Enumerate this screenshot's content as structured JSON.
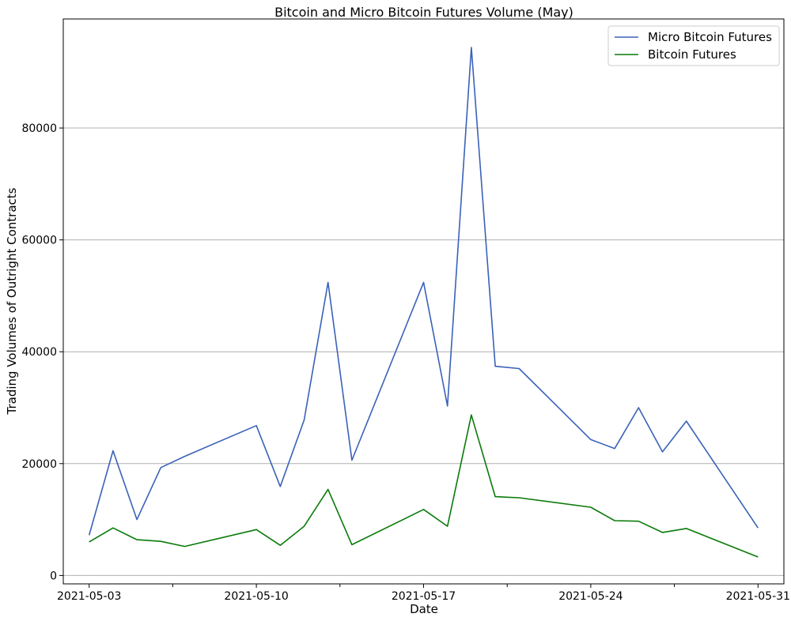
{
  "chart_data": {
    "type": "line",
    "title": "Bitcoin and Micro Bitcoin Futures Volume (May)",
    "xlabel": "Date",
    "ylabel": "Trading Volumes of Outright Contracts",
    "x": [
      "2021-05-03",
      "2021-05-04",
      "2021-05-05",
      "2021-05-06",
      "2021-05-07",
      "2021-05-10",
      "2021-05-11",
      "2021-05-12",
      "2021-05-13",
      "2021-05-14",
      "2021-05-17",
      "2021-05-18",
      "2021-05-19",
      "2021-05-20",
      "2021-05-21",
      "2021-05-24",
      "2021-05-25",
      "2021-05-26",
      "2021-05-27",
      "2021-05-28",
      "2021-05-31"
    ],
    "series": [
      {
        "name": "Micro Bitcoin Futures",
        "color": "#3a62b8",
        "values": [
          7200,
          22300,
          10000,
          19300,
          21300,
          26800,
          15900,
          27800,
          52400,
          20600,
          52400,
          30300,
          94400,
          37400,
          37000,
          24300,
          22700,
          30000,
          22100,
          27600,
          8500
        ]
      },
      {
        "name": "Bitcoin Futures",
        "color": "#0a7a0a",
        "values": [
          6000,
          8500,
          6400,
          6100,
          5200,
          8200,
          5400,
          8800,
          15400,
          5500,
          11800,
          8800,
          28700,
          14100,
          13900,
          12200,
          9800,
          9700,
          7700,
          8400,
          3300
        ]
      }
    ],
    "xticks": [
      "2021-05-03",
      "2021-05-10",
      "2021-05-17",
      "2021-05-24",
      "2021-05-31"
    ],
    "yticks": [
      0,
      20000,
      40000,
      60000,
      80000
    ],
    "ylim": [
      -1500,
      99500
    ],
    "xlim": [
      "2021-05-01T22:00",
      "2021-06-01T02:00"
    ],
    "grid": "horizontal",
    "legend_position": "top-right"
  }
}
